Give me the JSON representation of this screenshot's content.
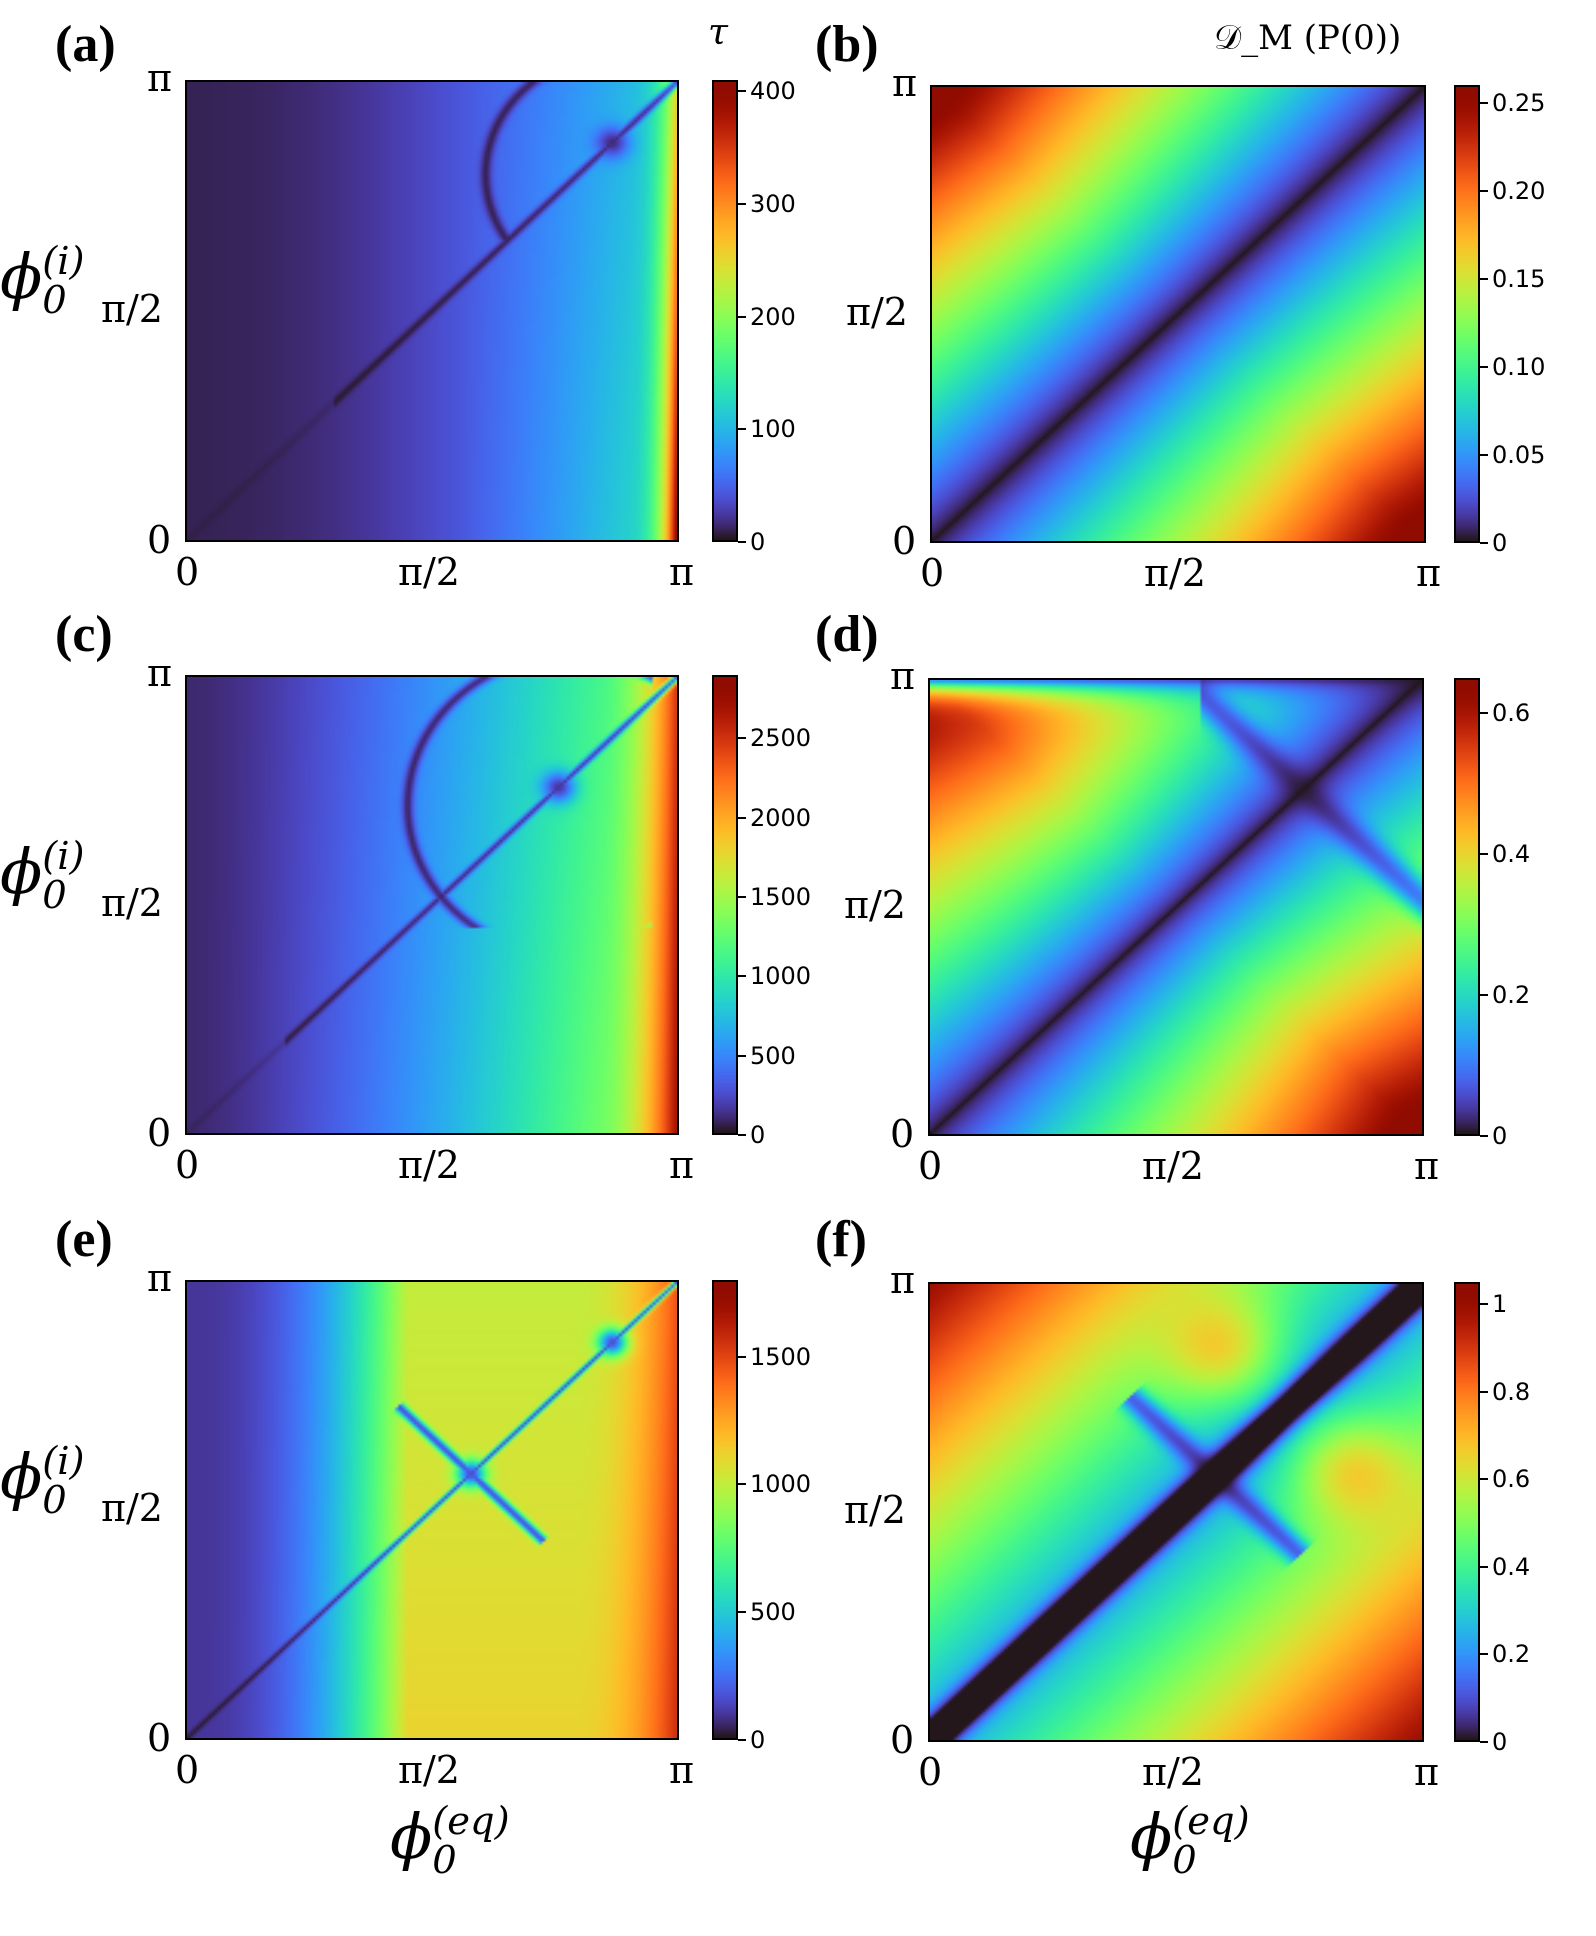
{
  "chart_data": [
    {
      "type": "heatmap",
      "panel_label": "(a)",
      "colorbar_title": "τ",
      "colormap": "turbo",
      "x_ticks": [
        "0",
        "π/2",
        "π"
      ],
      "y_ticks": [
        "0",
        "π/2",
        "π"
      ],
      "xlim": [
        0,
        3.1416
      ],
      "ylim": [
        0,
        3.1416
      ],
      "colorbar_ticks": [
        "0",
        "100",
        "200",
        "300",
        "400"
      ],
      "colorbar_range": [
        0,
        410
      ],
      "features": {
        "crossing_point": [
          2.75,
          2.5
        ],
        "diagonal_minimum": true
      }
    },
    {
      "type": "heatmap",
      "panel_label": "(b)",
      "colorbar_title": "𝒟_M (P(0))",
      "colormap": "turbo",
      "x_ticks": [
        "0",
        "π/2",
        "π"
      ],
      "y_ticks": [
        "0",
        "π/2",
        "π"
      ],
      "xlim": [
        0,
        3.1416
      ],
      "ylim": [
        0,
        3.1416
      ],
      "colorbar_ticks": [
        "0",
        "0.05",
        "0.10",
        "0.15",
        "0.20",
        "0.25"
      ],
      "colorbar_range": [
        0,
        0.26
      ],
      "features": {
        "maxima": [
          [
            0.2,
            2.5
          ],
          [
            2.6,
            0.3
          ]
        ],
        "diagonal_minimum": true
      }
    },
    {
      "type": "heatmap",
      "panel_label": "(c)",
      "colorbar_title": "",
      "colormap": "turbo",
      "x_ticks": [
        "0",
        "π/2",
        "π"
      ],
      "y_ticks": [
        "0",
        "π/2",
        "π"
      ],
      "xlim": [
        0,
        3.1416
      ],
      "ylim": [
        0,
        3.1416
      ],
      "colorbar_ticks": [
        "0",
        "500",
        "1000",
        "1500",
        "2000",
        "2500"
      ],
      "colorbar_range": [
        0,
        2900
      ],
      "features": {
        "crossing_point": [
          2.35,
          2.35
        ],
        "diagonal_minimum": true
      }
    },
    {
      "type": "heatmap",
      "panel_label": "(d)",
      "colorbar_title": "",
      "colormap": "turbo",
      "x_ticks": [
        "0",
        "π/2",
        "π"
      ],
      "y_ticks": [
        "0",
        "π/2",
        "π"
      ],
      "xlim": [
        0,
        3.1416
      ],
      "ylim": [
        0,
        3.1416
      ],
      "colorbar_ticks": [
        "0",
        "0.2",
        "0.4",
        "0.6"
      ],
      "colorbar_range": [
        0,
        0.65
      ],
      "features": {
        "maxima": [
          [
            0.1,
            2.2
          ],
          [
            2.3,
            0.3
          ]
        ],
        "diagonal_minimum": true
      }
    },
    {
      "type": "heatmap",
      "panel_label": "(e)",
      "colorbar_title": "",
      "colormap": "turbo",
      "x_ticks": [
        "0",
        "π/2",
        "π"
      ],
      "y_ticks": [
        "0",
        "π/2",
        "π"
      ],
      "xlim": [
        0,
        3.1416
      ],
      "ylim": [
        0,
        3.1416
      ],
      "colorbar_ticks": [
        "0",
        "500",
        "1000",
        "1500"
      ],
      "colorbar_range": [
        0,
        1800
      ],
      "features": {
        "crossing_points": [
          [
            1.8,
            1.8
          ],
          [
            2.75,
            2.55
          ]
        ],
        "diagonal_minimum": true
      }
    },
    {
      "type": "heatmap",
      "panel_label": "(f)",
      "colorbar_title": "",
      "colormap": "turbo",
      "x_ticks": [
        "0",
        "π/2",
        "π"
      ],
      "y_ticks": [
        "0",
        "π/2",
        "π"
      ],
      "xlim": [
        0,
        3.1416
      ],
      "ylim": [
        0,
        3.1416
      ],
      "colorbar_ticks": [
        "0",
        "0.2",
        "0.4",
        "0.6",
        "0.8",
        "1"
      ],
      "colorbar_range": [
        0,
        1.05
      ],
      "features": {
        "maxima": [
          [
            0.1,
            1.75
          ],
          [
            1.8,
            0.1
          ]
        ],
        "diagonal_minimum": true
      }
    }
  ],
  "y_axis_label": {
    "base": "ϕ",
    "sup": "(i)",
    "sub": "0"
  },
  "x_axis_label": {
    "base": "ϕ",
    "sup": "(eq)",
    "sub": "0"
  }
}
